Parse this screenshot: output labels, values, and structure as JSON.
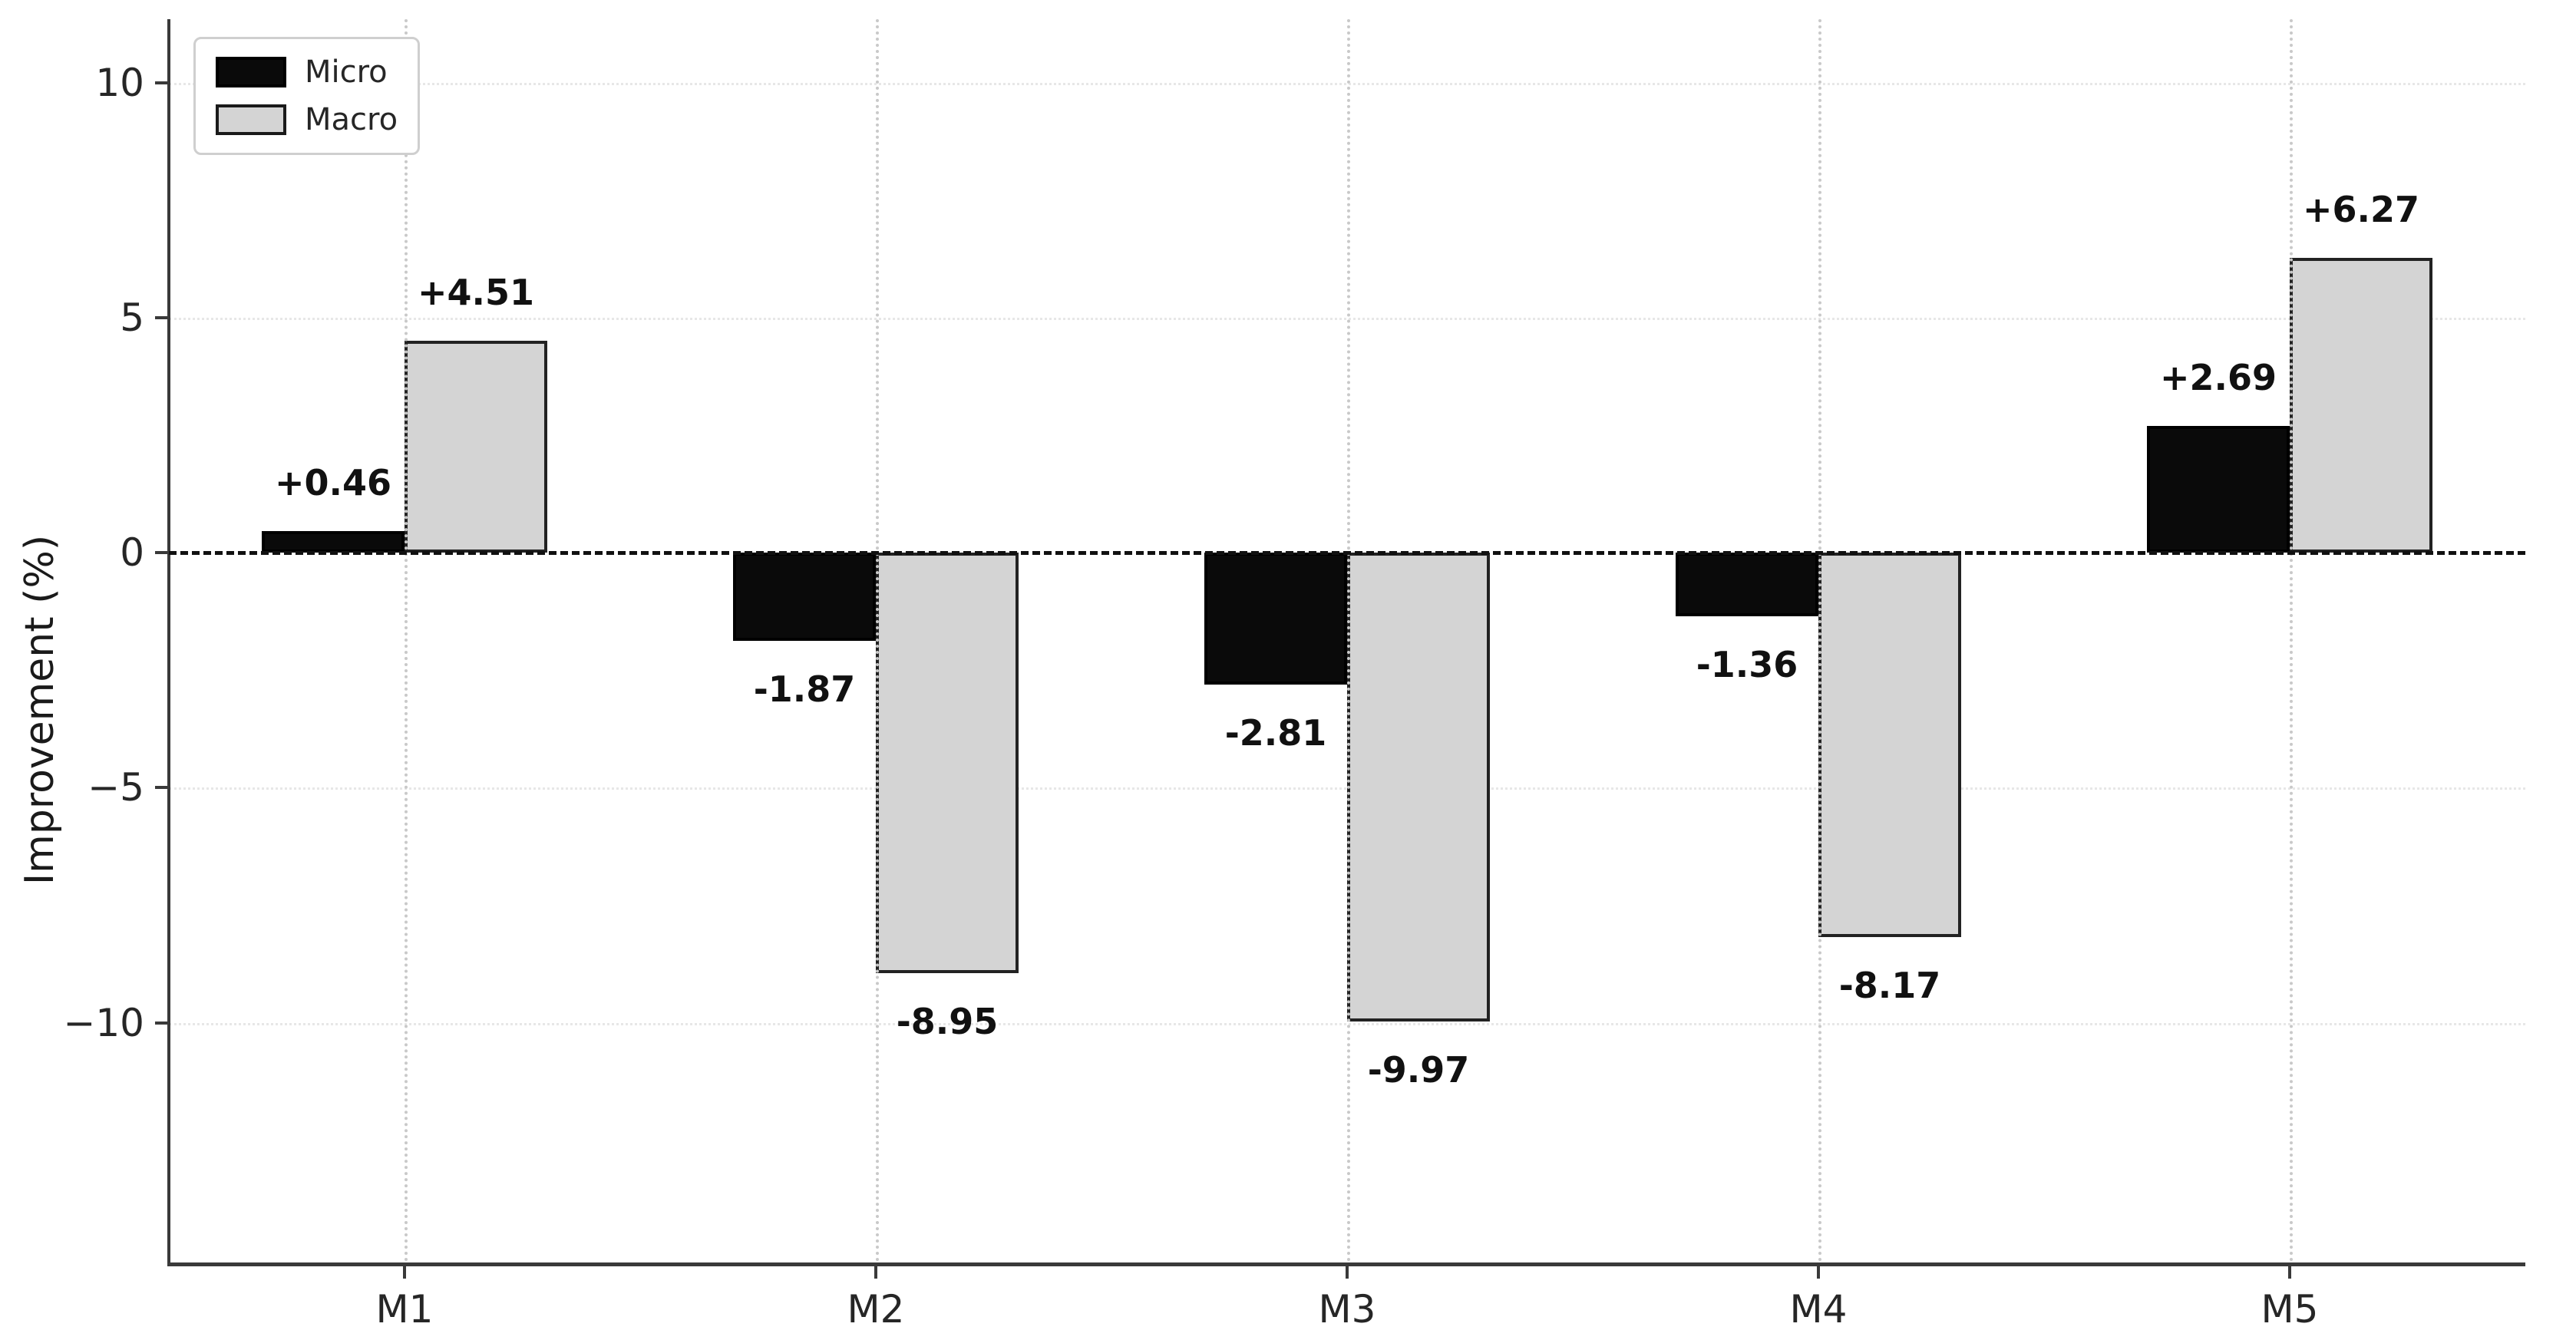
{
  "figure": {
    "background": "#ffffff"
  },
  "y_axis": {
    "label": "Improvement (%)",
    "tick_labels": [
      "10",
      "5",
      "0",
      "−5",
      "−10"
    ],
    "tick_values": [
      10,
      5,
      0,
      -5,
      -10
    ]
  },
  "x_axis": {
    "tick_labels": [
      "M1",
      "M2",
      "M3",
      "M4",
      "M5"
    ]
  },
  "legend": {
    "entries": [
      {
        "label": "Micro",
        "color": "#0a0a0a",
        "edge_color": "#000000"
      },
      {
        "label": "Macro",
        "color": "#d4d4d4",
        "edge_color": "#1a1a1a"
      }
    ]
  },
  "chart_data": {
    "type": "bar",
    "title": "",
    "categories": [
      "M1",
      "M2",
      "M3",
      "M4",
      "M5"
    ],
    "series": [
      {
        "name": "Micro",
        "color": "#0a0a0a",
        "edge_color": "#000000",
        "values": [
          0.46,
          -1.87,
          -2.81,
          -1.36,
          2.69
        ],
        "value_labels": [
          "+0.46",
          "-1.87",
          "-2.81",
          "-1.36",
          "+2.69"
        ]
      },
      {
        "name": "Macro",
        "color": "#d4d4d4",
        "edge_color": "#222222",
        "values": [
          4.51,
          -8.95,
          -9.97,
          -8.17,
          6.27
        ],
        "value_labels": [
          "+4.51",
          "-8.95",
          "-9.97",
          "-8.17",
          "+6.27"
        ]
      }
    ],
    "xlabel": "",
    "ylabel": "Improvement (%)",
    "yticks": [
      10,
      5,
      0,
      -5,
      -10
    ],
    "ylim": [
      -15.1,
      11.35
    ],
    "zero_line": {
      "style": "dashed",
      "color": "#111111"
    },
    "grid": {
      "vertical": {
        "style": "dotted",
        "color": "#c9c9c9"
      },
      "horizontal": {
        "style": "dotted",
        "color": "#e7e7e7"
      }
    },
    "legend_position": "upper left"
  }
}
